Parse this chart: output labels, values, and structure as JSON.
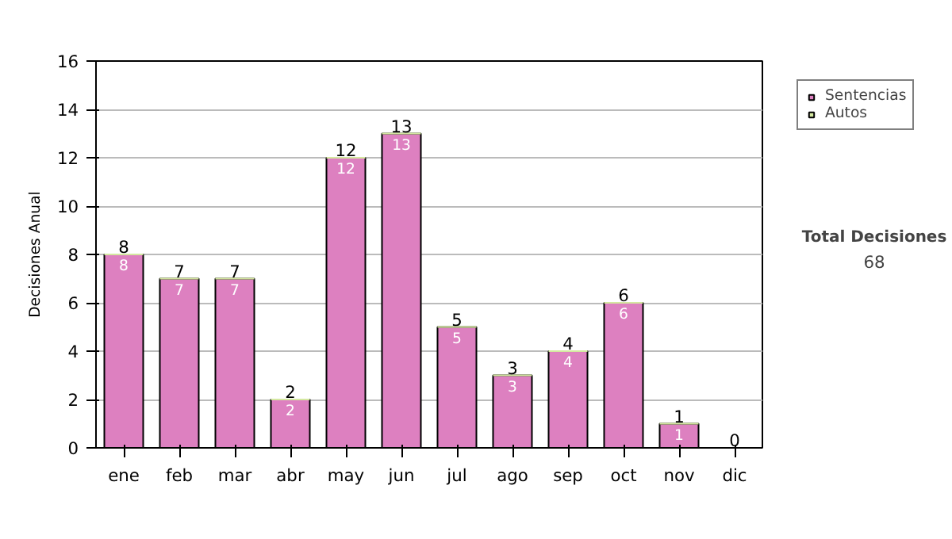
{
  "chart_data": {
    "type": "bar",
    "stacked": true,
    "ylabel": "Decisiones Anual",
    "categories": [
      "ene",
      "feb",
      "mar",
      "abr",
      "may",
      "jun",
      "jul",
      "ago",
      "sep",
      "oct",
      "nov",
      "dic"
    ],
    "series": [
      {
        "name": "Sentencias",
        "color": "#dd80c0",
        "values": [
          8,
          7,
          7,
          2,
          12,
          13,
          5,
          3,
          4,
          6,
          1,
          0
        ],
        "value_labels": [
          "8",
          "7",
          "7",
          "2",
          "12",
          "13",
          "5",
          "3",
          "4",
          "6",
          "1",
          null
        ]
      },
      {
        "name": "Autos",
        "color": "#d4e8a0",
        "values": [
          0,
          0,
          0,
          0,
          0,
          0,
          0,
          0,
          0,
          0,
          0,
          0
        ]
      }
    ],
    "totals": [
      "8",
      "7",
      "7",
      "2",
      "12",
      "13",
      "5",
      "3",
      "4",
      "6",
      "1",
      "0"
    ],
    "ylim": [
      0,
      16
    ],
    "yticks": [
      0,
      2,
      4,
      6,
      8,
      10,
      12,
      14,
      16
    ],
    "grid": "y",
    "legend": "right",
    "annotations": [
      "Total Decisiones",
      "68"
    ]
  }
}
